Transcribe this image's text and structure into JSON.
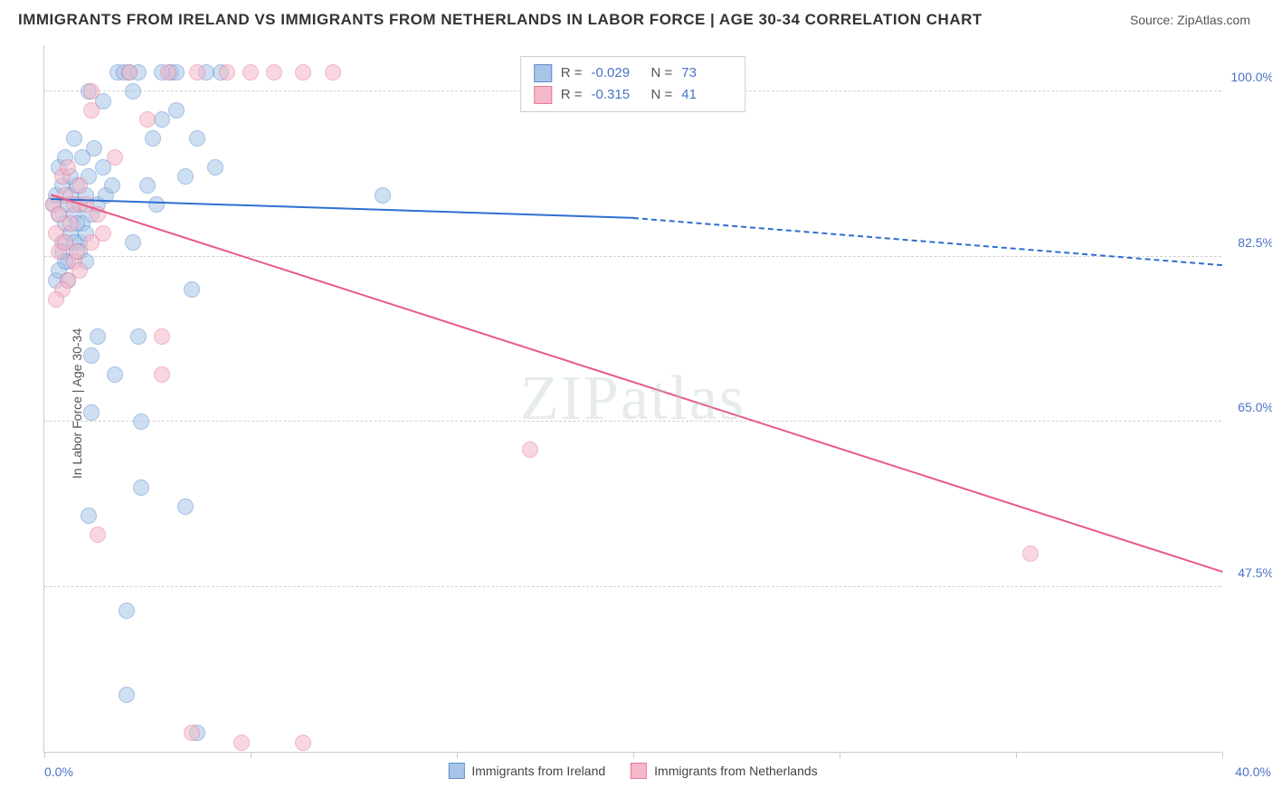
{
  "title": "IMMIGRANTS FROM IRELAND VS IMMIGRANTS FROM NETHERLANDS IN LABOR FORCE | AGE 30-34 CORRELATION CHART",
  "source": "Source: ZipAtlas.com",
  "ylabel": "In Labor Force | Age 30-34",
  "watermark": "ZIPatlas",
  "chart": {
    "type": "scatter",
    "xlim": [
      0,
      40
    ],
    "ylim": [
      30,
      105
    ],
    "x_tick_left": "0.0%",
    "x_tick_right": "40.0%",
    "y_ticks": [
      {
        "value": 47.5,
        "label": "47.5%"
      },
      {
        "value": 65.0,
        "label": "65.0%"
      },
      {
        "value": 82.5,
        "label": "82.5%"
      },
      {
        "value": 100.0,
        "label": "100.0%"
      }
    ],
    "x_tick_marks": [
      0,
      7,
      14,
      20,
      27,
      33,
      40
    ],
    "background_color": "#ffffff",
    "grid_color": "#d0d0d0",
    "marker_radius": 9,
    "marker_opacity": 0.55,
    "line_width": 2,
    "series": [
      {
        "id": "ireland",
        "label": "Immigrants from Ireland",
        "color_fill": "#a8c5e8",
        "color_stroke": "#5b8fd0",
        "line_color": "#2d6fd0",
        "R": "-0.029",
        "N": "73",
        "trend": {
          "x1": 0.2,
          "y1": 88.5,
          "x2": 20,
          "y2": 86.5
        },
        "trend_dash": {
          "x1": 20,
          "y1": 86.5,
          "x2": 40,
          "y2": 81.5
        },
        "points": [
          [
            0.3,
            88
          ],
          [
            0.4,
            89
          ],
          [
            0.5,
            87
          ],
          [
            0.6,
            90
          ],
          [
            0.7,
            86
          ],
          [
            0.8,
            88
          ],
          [
            0.9,
            89
          ],
          [
            1.0,
            87
          ],
          [
            1.1,
            90
          ],
          [
            1.2,
            88
          ],
          [
            1.3,
            86
          ],
          [
            1.4,
            89
          ],
          [
            1.5,
            91
          ],
          [
            1.6,
            87
          ],
          [
            1.8,
            88
          ],
          [
            2.0,
            92
          ],
          [
            2.1,
            89
          ],
          [
            2.3,
            90
          ],
          [
            2.5,
            102
          ],
          [
            2.7,
            102
          ],
          [
            2.9,
            102
          ],
          [
            3.0,
            100
          ],
          [
            3.2,
            102
          ],
          [
            3.5,
            90
          ],
          [
            3.7,
            95
          ],
          [
            3.8,
            88
          ],
          [
            4.0,
            97
          ],
          [
            4.3,
            102
          ],
          [
            4.5,
            98
          ],
          [
            4.8,
            91
          ],
          [
            5.0,
            79
          ],
          [
            5.2,
            95
          ],
          [
            5.5,
            102
          ],
          [
            5.8,
            92
          ],
          [
            6.0,
            102
          ],
          [
            1.5,
            100
          ],
          [
            2.0,
            99
          ],
          [
            1.2,
            84
          ],
          [
            0.8,
            82
          ],
          [
            0.6,
            84
          ],
          [
            0.9,
            91
          ],
          [
            1.3,
            93
          ],
          [
            1.7,
            94
          ],
          [
            0.5,
            92
          ],
          [
            0.7,
            93
          ],
          [
            1.0,
            95
          ],
          [
            1.4,
            85
          ],
          [
            4.0,
            102
          ],
          [
            1.6,
            66
          ],
          [
            3.3,
            65
          ],
          [
            3.3,
            58
          ],
          [
            3.2,
            74
          ],
          [
            1.6,
            72
          ],
          [
            1.5,
            55
          ],
          [
            2.8,
            45
          ],
          [
            4.8,
            56
          ],
          [
            2.8,
            36
          ],
          [
            5.2,
            32
          ],
          [
            4.5,
            102
          ],
          [
            11.5,
            89
          ],
          [
            3.0,
            84
          ],
          [
            0.4,
            80
          ],
          [
            0.5,
            81
          ],
          [
            0.6,
            83
          ],
          [
            0.7,
            82
          ],
          [
            0.8,
            80
          ],
          [
            0.9,
            85
          ],
          [
            1.0,
            84
          ],
          [
            1.1,
            86
          ],
          [
            1.2,
            83
          ],
          [
            1.4,
            82
          ],
          [
            1.8,
            74
          ],
          [
            2.4,
            70
          ]
        ]
      },
      {
        "id": "netherlands",
        "label": "Immigrants from Netherlands",
        "color_fill": "#f5b8c8",
        "color_stroke": "#e87a9a",
        "line_color": "#e85a85",
        "R": "-0.315",
        "N": "41",
        "trend": {
          "x1": 0.2,
          "y1": 89,
          "x2": 40,
          "y2": 49
        },
        "points": [
          [
            0.3,
            88
          ],
          [
            0.5,
            87
          ],
          [
            0.7,
            89
          ],
          [
            0.9,
            86
          ],
          [
            1.0,
            88
          ],
          [
            1.2,
            90
          ],
          [
            1.4,
            88
          ],
          [
            1.6,
            84
          ],
          [
            1.8,
            87
          ],
          [
            2.0,
            85
          ],
          [
            0.8,
            80
          ],
          [
            1.0,
            82
          ],
          [
            1.2,
            81
          ],
          [
            0.6,
            79
          ],
          [
            0.4,
            85
          ],
          [
            0.5,
            83
          ],
          [
            0.7,
            84
          ],
          [
            1.1,
            83
          ],
          [
            1.6,
            98
          ],
          [
            2.4,
            93
          ],
          [
            3.5,
            97
          ],
          [
            4.2,
            102
          ],
          [
            5.2,
            102
          ],
          [
            6.2,
            102
          ],
          [
            7.0,
            102
          ],
          [
            7.8,
            102
          ],
          [
            8.8,
            102
          ],
          [
            9.8,
            102
          ],
          [
            4.0,
            74
          ],
          [
            4.0,
            70
          ],
          [
            1.8,
            53
          ],
          [
            5.0,
            32
          ],
          [
            6.7,
            31
          ],
          [
            8.8,
            31
          ],
          [
            16.5,
            62
          ],
          [
            33.5,
            51
          ],
          [
            2.9,
            102
          ],
          [
            0.6,
            91
          ],
          [
            0.8,
            92
          ],
          [
            1.6,
            100
          ],
          [
            0.4,
            78
          ]
        ]
      }
    ]
  }
}
